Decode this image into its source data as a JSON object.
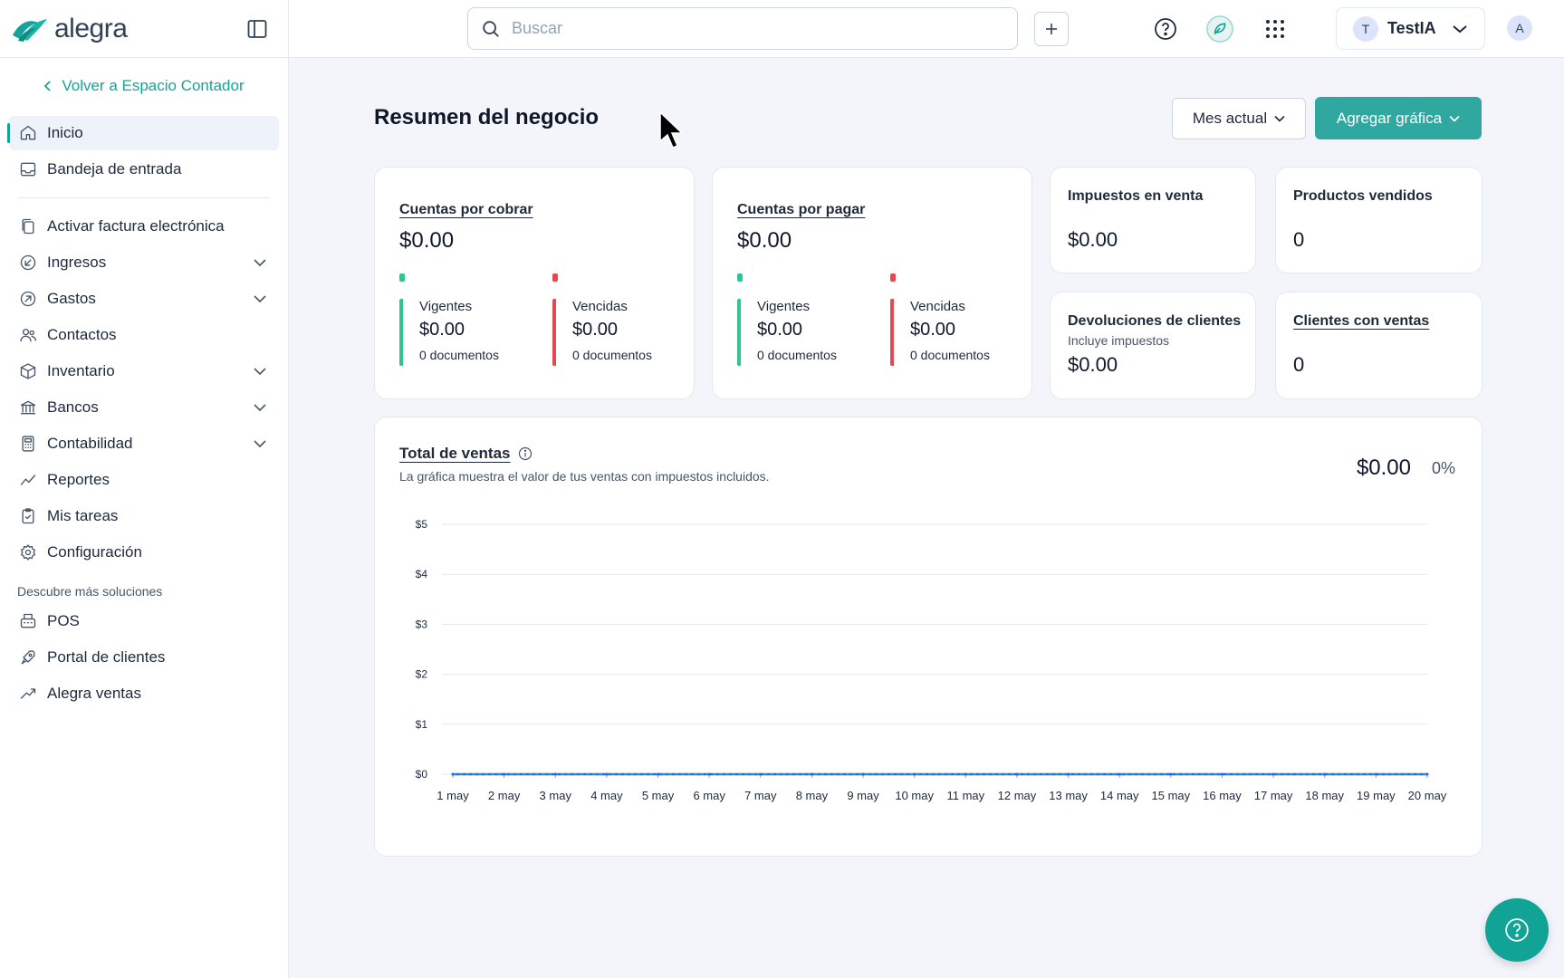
{
  "brand": {
    "name": "alegra"
  },
  "topbar": {
    "search_placeholder": "Buscar",
    "account_initial": "T",
    "account_name": "TestIA",
    "user_initial": "A"
  },
  "sidebar": {
    "back_label": "Volver a Espacio Contador",
    "items_top": [
      {
        "label": "Inicio",
        "icon": "home-icon",
        "active": true
      },
      {
        "label": "Bandeja de entrada",
        "icon": "inbox-icon"
      }
    ],
    "items_main": [
      {
        "label": "Activar factura electrónica",
        "icon": "document-copy-icon"
      },
      {
        "label": "Ingresos",
        "icon": "income-icon",
        "expandable": true
      },
      {
        "label": "Gastos",
        "icon": "expense-icon",
        "expandable": true
      },
      {
        "label": "Contactos",
        "icon": "contacts-icon"
      },
      {
        "label": "Inventario",
        "icon": "box-icon",
        "expandable": true
      },
      {
        "label": "Bancos",
        "icon": "bank-icon",
        "expandable": true
      },
      {
        "label": "Contabilidad",
        "icon": "calculator-icon",
        "expandable": true
      },
      {
        "label": "Reportes",
        "icon": "chart-line-icon"
      },
      {
        "label": "Mis tareas",
        "icon": "clipboard-icon"
      },
      {
        "label": "Configuración",
        "icon": "gear-icon"
      }
    ],
    "section_label": "Descubre más soluciones",
    "items_more": [
      {
        "label": "POS",
        "icon": "pos-icon"
      },
      {
        "label": "Portal de clientes",
        "icon": "rocket-icon"
      },
      {
        "label": "Alegra ventas",
        "icon": "trend-up-icon"
      }
    ]
  },
  "main": {
    "title": "Resumen del negocio",
    "period_button": "Mes actual",
    "add_chart_button": "Agregar gráfica",
    "receivables": {
      "title": "Cuentas por cobrar",
      "amount": "$0.00",
      "current_label": "Vigentes",
      "current_amount": "$0.00",
      "current_docs": "0 documentos",
      "overdue_label": "Vencidas",
      "overdue_amount": "$0.00",
      "overdue_docs": "0 documentos"
    },
    "payables": {
      "title": "Cuentas por pagar",
      "amount": "$0.00",
      "current_label": "Vigentes",
      "current_amount": "$0.00",
      "current_docs": "0 documentos",
      "overdue_label": "Vencidas",
      "overdue_amount": "$0.00",
      "overdue_docs": "0 documentos"
    },
    "sales_tax": {
      "title": "Impuestos en venta",
      "amount": "$0.00"
    },
    "products_sold": {
      "title": "Productos vendidos",
      "amount": "0"
    },
    "returns": {
      "title": "Devoluciones de clientes",
      "subtitle": "Incluye impuestos",
      "amount": "$0.00"
    },
    "clients_with_sales": {
      "title": "Clientes con ventas",
      "amount": "0"
    },
    "sales_chart": {
      "title": "Total de ventas",
      "description": "La gráfica muestra el valor de tus ventas con impuestos incluidos.",
      "total": "$0.00",
      "percent": "0%"
    }
  },
  "colors": {
    "accent": "#30a8a0",
    "green": "#2fc58f",
    "red": "#e5484d",
    "line": "#2563eb"
  },
  "chart_data": {
    "type": "line",
    "title": "Total de ventas",
    "x": [
      "1 may",
      "2 may",
      "3 may",
      "4 may",
      "5 may",
      "6 may",
      "7 may",
      "8 may",
      "9 may",
      "10 may",
      "11 may",
      "12 may",
      "13 may",
      "14 may",
      "15 may",
      "16 may",
      "17 may",
      "18 may",
      "19 may",
      "20 may"
    ],
    "values": [
      0,
      0,
      0,
      0,
      0,
      0,
      0,
      0,
      0,
      0,
      0,
      0,
      0,
      0,
      0,
      0,
      0,
      0,
      0,
      0
    ],
    "y_ticks": [
      "$0",
      "$1",
      "$2",
      "$3",
      "$4",
      "$5"
    ],
    "ylim": [
      0,
      5
    ],
    "grid": true
  }
}
